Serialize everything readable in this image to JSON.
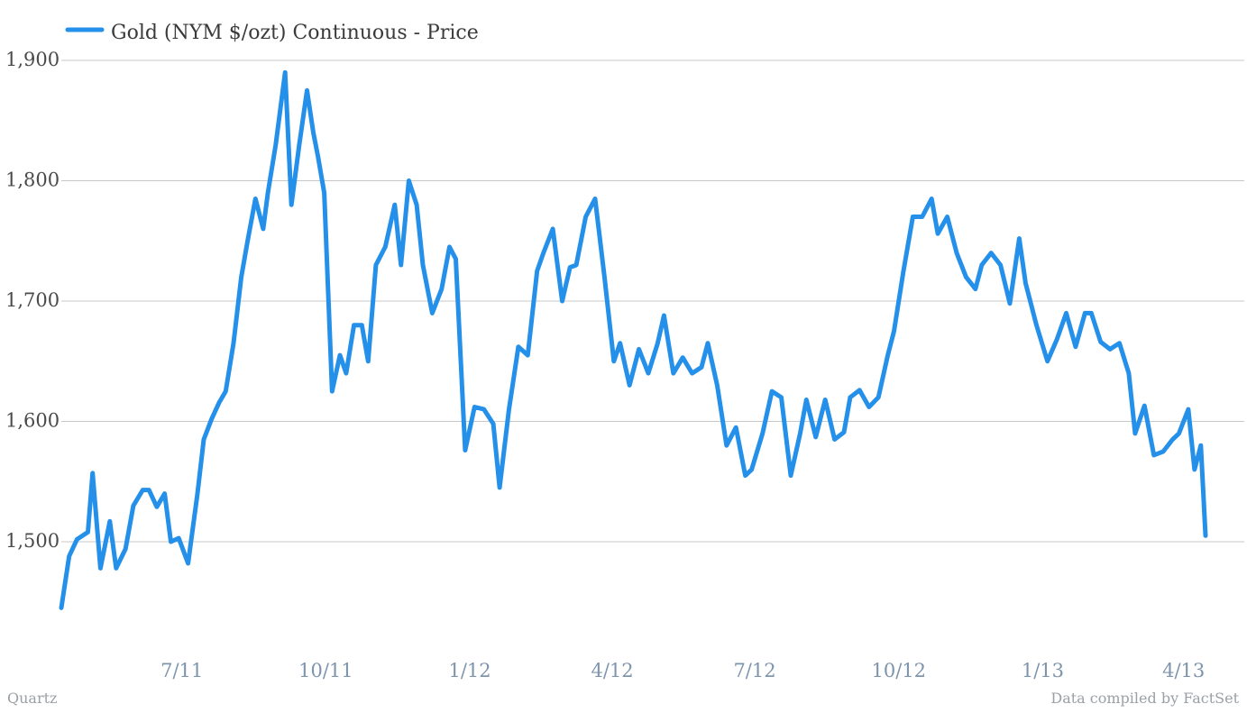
{
  "colors": {
    "series": "#2490ea",
    "grid": "#c8c8c8",
    "ytick": "#4a4a4a",
    "xtick": "#7d94ad",
    "footer": "#9aa0a6"
  },
  "footer": {
    "source_left": "Quartz",
    "source_right": "Data compiled by FactSet"
  },
  "chart_data": {
    "type": "line",
    "title": "",
    "xlabel": "",
    "ylabel": "",
    "legend_position": "top-left",
    "grid": true,
    "ylim": [
      1420,
      1910
    ],
    "xlim": [
      "2011-04-15",
      "2013-04-22"
    ],
    "yticks": [
      {
        "value": 1500,
        "label": "1,500"
      },
      {
        "value": 1600,
        "label": "1,600"
      },
      {
        "value": 1700,
        "label": "1,700"
      },
      {
        "value": 1800,
        "label": "1,800"
      },
      {
        "value": 1900,
        "label": "1,900"
      }
    ],
    "xticks": [
      {
        "date": "2011-07-01",
        "label": "7/11"
      },
      {
        "date": "2011-10-01",
        "label": "10/11"
      },
      {
        "date": "2012-01-01",
        "label": "1/12"
      },
      {
        "date": "2012-04-01",
        "label": "4/12"
      },
      {
        "date": "2012-07-01",
        "label": "7/12"
      },
      {
        "date": "2012-10-01",
        "label": "10/12"
      },
      {
        "date": "2013-01-01",
        "label": "1/13"
      },
      {
        "date": "2013-04-01",
        "label": "4/13"
      }
    ],
    "series": [
      {
        "name": "Gold (NYM $/ozt) Continuous - Price",
        "x": [
          "2011-04-15",
          "2011-04-20",
          "2011-04-25",
          "2011-05-02",
          "2011-05-05",
          "2011-05-10",
          "2011-05-16",
          "2011-05-20",
          "2011-05-26",
          "2011-05-31",
          "2011-06-06",
          "2011-06-10",
          "2011-06-15",
          "2011-06-20",
          "2011-06-24",
          "2011-06-29",
          "2011-07-05",
          "2011-07-11",
          "2011-07-15",
          "2011-07-20",
          "2011-07-25",
          "2011-07-29",
          "2011-08-03",
          "2011-08-08",
          "2011-08-12",
          "2011-08-17",
          "2011-08-22",
          "2011-08-25",
          "2011-08-30",
          "2011-09-05",
          "2011-09-09",
          "2011-09-14",
          "2011-09-19",
          "2011-09-23",
          "2011-09-26",
          "2011-09-30",
          "2011-10-05",
          "2011-10-10",
          "2011-10-14",
          "2011-10-19",
          "2011-10-24",
          "2011-10-28",
          "2011-11-02",
          "2011-11-08",
          "2011-11-14",
          "2011-11-18",
          "2011-11-23",
          "2011-11-28",
          "2011-12-02",
          "2011-12-08",
          "2011-12-14",
          "2011-12-19",
          "2011-12-23",
          "2011-12-29",
          "2012-01-04",
          "2012-01-10",
          "2012-01-16",
          "2012-01-20",
          "2012-01-26",
          "2012-02-01",
          "2012-02-07",
          "2012-02-13",
          "2012-02-17",
          "2012-02-23",
          "2012-02-29",
          "2012-03-05",
          "2012-03-09",
          "2012-03-15",
          "2012-03-21",
          "2012-03-27",
          "2012-04-02",
          "2012-04-06",
          "2012-04-12",
          "2012-04-18",
          "2012-04-24",
          "2012-04-30",
          "2012-05-04",
          "2012-05-10",
          "2012-05-16",
          "2012-05-22",
          "2012-05-28",
          "2012-06-01",
          "2012-06-07",
          "2012-06-13",
          "2012-06-19",
          "2012-06-25",
          "2012-06-29",
          "2012-07-06",
          "2012-07-12",
          "2012-07-18",
          "2012-07-24",
          "2012-07-30",
          "2012-08-03",
          "2012-08-09",
          "2012-08-15",
          "2012-08-21",
          "2012-08-27",
          "2012-08-31",
          "2012-09-06",
          "2012-09-12",
          "2012-09-18",
          "2012-09-24",
          "2012-09-28",
          "2012-10-04",
          "2012-10-10",
          "2012-10-16",
          "2012-10-22",
          "2012-10-26",
          "2012-11-01",
          "2012-11-07",
          "2012-11-13",
          "2012-11-19",
          "2012-11-23",
          "2012-11-29",
          "2012-12-05",
          "2012-12-11",
          "2012-12-17",
          "2012-12-21",
          "2012-12-28",
          "2013-01-04",
          "2013-01-10",
          "2013-01-16",
          "2013-01-22",
          "2013-01-28",
          "2013-02-01",
          "2013-02-07",
          "2013-02-13",
          "2013-02-19",
          "2013-02-25",
          "2013-03-01",
          "2013-03-07",
          "2013-03-13",
          "2013-03-19",
          "2013-03-25",
          "2013-03-29",
          "2013-04-04",
          "2013-04-08",
          "2013-04-12",
          "2013-04-15"
        ],
        "y": [
          1445,
          1488,
          1502,
          1508,
          1557,
          1478,
          1517,
          1478,
          1494,
          1530,
          1543,
          1543,
          1529,
          1540,
          1500,
          1503,
          1482,
          1540,
          1585,
          1602,
          1616,
          1625,
          1665,
          1720,
          1750,
          1785,
          1760,
          1790,
          1830,
          1890,
          1780,
          1830,
          1875,
          1840,
          1820,
          1790,
          1625,
          1655,
          1640,
          1680,
          1680,
          1650,
          1730,
          1745,
          1780,
          1730,
          1800,
          1780,
          1730,
          1690,
          1710,
          1745,
          1735,
          1576,
          1612,
          1610,
          1598,
          1545,
          1610,
          1662,
          1655,
          1725,
          1740,
          1760,
          1700,
          1728,
          1730,
          1770,
          1785,
          1720,
          1650,
          1665,
          1630,
          1660,
          1640,
          1665,
          1688,
          1640,
          1653,
          1640,
          1645,
          1665,
          1630,
          1580,
          1595,
          1555,
          1560,
          1590,
          1625,
          1620,
          1555,
          1590,
          1618,
          1587,
          1618,
          1585,
          1591,
          1620,
          1626,
          1612,
          1620,
          1655,
          1675,
          1725,
          1770,
          1770,
          1785,
          1756,
          1770,
          1740,
          1720,
          1710,
          1730,
          1740,
          1730,
          1698,
          1752,
          1715,
          1680,
          1650,
          1668,
          1690,
          1662,
          1690,
          1690,
          1666,
          1660,
          1665,
          1640,
          1590,
          1613,
          1572,
          1575,
          1585,
          1590,
          1610,
          1560,
          1580,
          1505
        ]
      }
    ]
  }
}
